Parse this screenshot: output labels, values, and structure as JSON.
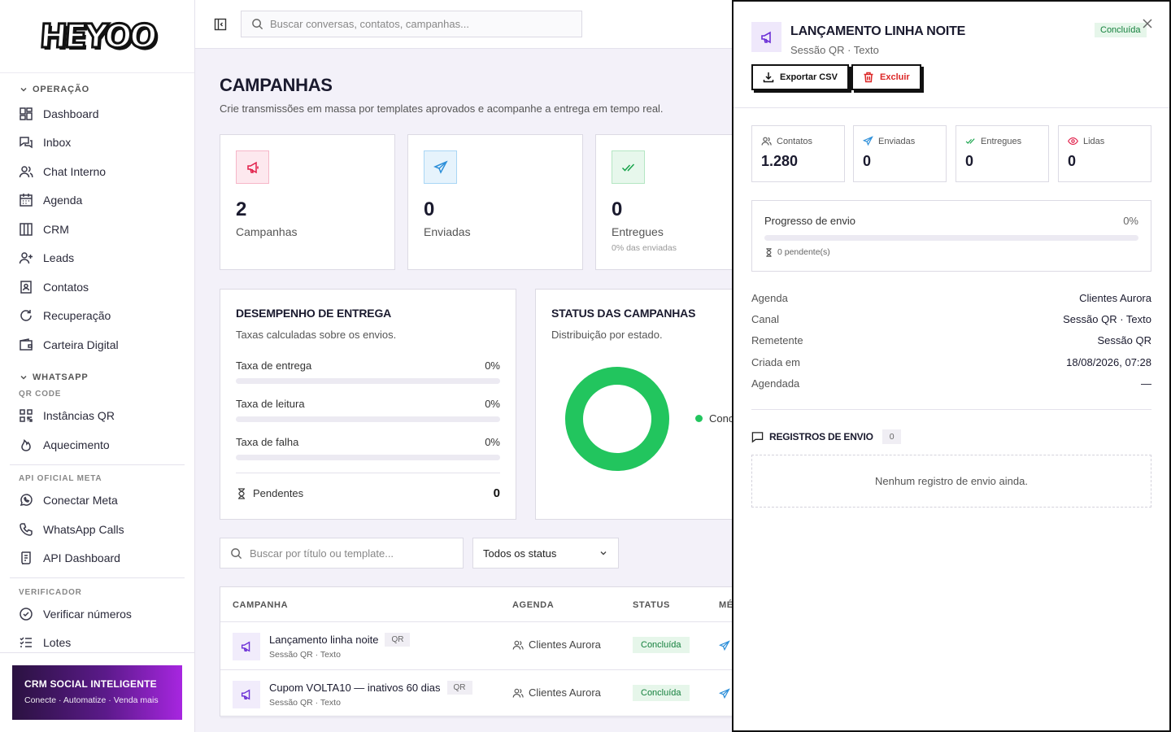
{
  "brand": {
    "logo_text": "HEYOO"
  },
  "search": {
    "placeholder": "Buscar conversas, contatos, campanhas..."
  },
  "sidebar": {
    "sections": {
      "operacao": "OPERAÇÃO",
      "whatsapp": "WHATSAPP",
      "qr_code": "QR CODE",
      "api_meta": "API OFICIAL META",
      "verificador": "VERIFICADOR"
    },
    "items": {
      "dashboard": "Dashboard",
      "inbox": "Inbox",
      "chat_interno": "Chat Interno",
      "agenda": "Agenda",
      "crm": "CRM",
      "leads": "Leads",
      "contatos": "Contatos",
      "recuperacao": "Recuperação",
      "carteira": "Carteira Digital",
      "instancias": "Instâncias QR",
      "aquecimento": "Aquecimento",
      "conectar_meta": "Conectar Meta",
      "calls": "WhatsApp Calls",
      "api_dashboard": "API Dashboard",
      "verificar": "Verificar números",
      "lotes": "Lotes"
    },
    "promo": {
      "title": "CRM SOCIAL INTELIGENTE",
      "subtitle": "Conecte · Automatize · Venda mais"
    }
  },
  "main": {
    "title": "CAMPANHAS",
    "subtitle": "Crie transmissões em massa por templates aprovados e acompanhe a entrega em tempo real.",
    "stats": [
      {
        "value": "2",
        "label": "Campanhas",
        "extra": ""
      },
      {
        "value": "0",
        "label": "Enviadas",
        "extra": ""
      },
      {
        "value": "0",
        "label": "Entregues",
        "extra": "0% das enviadas"
      }
    ],
    "performance": {
      "title": "DESEMPENHO DE ENTREGA",
      "subtitle": "Taxas calculadas sobre os envios.",
      "rates": [
        {
          "label": "Taxa de entrega",
          "value": "0%",
          "fraction": 0
        },
        {
          "label": "Taxa de leitura",
          "value": "0%",
          "fraction": 0
        },
        {
          "label": "Taxa de falha",
          "value": "0%",
          "fraction": 0
        }
      ],
      "pending_label": "Pendentes",
      "pending_value": "0"
    },
    "status": {
      "title": "STATUS DAS CAMPANHAS",
      "subtitle": "Distribuição por estado.",
      "legend_label": "Concluída",
      "color": "#22c55e"
    },
    "filters": {
      "search_placeholder": "Buscar por título ou template...",
      "status_selected": "Todos os status"
    },
    "table": {
      "headers": {
        "campanha": "CAMPANHA",
        "agenda": "AGENDA",
        "status": "STATUS",
        "metricas": "MÉTRICAS"
      },
      "rows": [
        {
          "name": "Lançamento linha noite",
          "badge": "QR",
          "sub": "Sessão QR · Texto",
          "agenda": "Clientes Aurora",
          "status": "Concluída"
        },
        {
          "name": "Cupom VOLTA10 — inativos 60 dias",
          "badge": "QR",
          "sub": "Sessão QR · Texto",
          "agenda": "Clientes Aurora",
          "status": "Concluída"
        }
      ]
    }
  },
  "drawer": {
    "title": "LANÇAMENTO LINHA NOITE",
    "subtitle": "Sessão QR · Texto",
    "status": "Concluída",
    "export_label": "Exportar CSV",
    "delete_label": "Excluir",
    "kpis": {
      "contatos": {
        "label": "Contatos",
        "value": "1.280"
      },
      "enviadas": {
        "label": "Enviadas",
        "value": "0"
      },
      "entregues": {
        "label": "Entregues",
        "value": "0"
      },
      "lidas": {
        "label": "Lidas",
        "value": "0"
      }
    },
    "progress": {
      "label": "Progresso de envio",
      "value": "0%",
      "fraction": 0,
      "pending": "0 pendente(s)"
    },
    "meta": {
      "agenda": {
        "k": "Agenda",
        "v": "Clientes Aurora"
      },
      "canal": {
        "k": "Canal",
        "v": "Sessão QR · Texto"
      },
      "remetente": {
        "k": "Remetente",
        "v": "Sessão QR"
      },
      "criada": {
        "k": "Criada em",
        "v": "18/08/2026, 07:28"
      },
      "agendada": {
        "k": "Agendada",
        "v": "—"
      }
    },
    "logs": {
      "title": "REGISTROS DE ENVIO",
      "count": "0",
      "empty": "Nenhum registro de envio ainda."
    }
  }
}
